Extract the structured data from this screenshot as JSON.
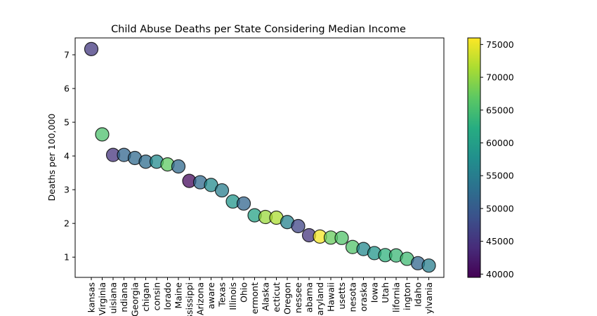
{
  "chart_data": {
    "type": "scatter",
    "title": "Child Abuse Deaths per State Considering Median Income",
    "xlabel": "",
    "ylabel": "Deaths per 100,000",
    "ylim": [
      0.4,
      7.5
    ],
    "yticks": [
      1,
      2,
      3,
      4,
      5,
      6,
      7
    ],
    "grid": false,
    "categories": [
      "Arkansas",
      "West Virginia",
      "Louisiana",
      "Indiana",
      "Georgia",
      "Michigan",
      "Wisconsin",
      "Colorado",
      "Maine",
      "Mississippi",
      "Arizona",
      "Delaware",
      "Texas",
      "Illinois",
      "Ohio",
      "Vermont",
      "Alaska",
      "Connecticut",
      "Oregon",
      "Tennessee",
      "Alabama",
      "Maryland",
      "Hawaii",
      "Massachusetts",
      "Minnesota",
      "Nebraska",
      "Iowa",
      "Utah",
      "California",
      "Washington",
      "Idaho",
      "Pennsylvania"
    ],
    "tick_labels_visible": [
      "kansas",
      "Virginia",
      "uisiana",
      "ndiana",
      "Georgia",
      "chigan",
      "consin",
      "lorado",
      "Maine",
      "ssissippi",
      "Arizona",
      "aware",
      "Texas",
      "Illinois",
      "Ohio",
      "ermont",
      "Alaska",
      "ecticut",
      "Oregon",
      "nessee",
      "abama",
      "aryland",
      "Hawaii",
      "usetts",
      "nesota",
      "oraska",
      "Iowa",
      "Utah",
      "lifornia",
      "ington",
      "Idaho",
      "ylvania"
    ],
    "values": [
      7.17,
      4.64,
      4.03,
      4.03,
      3.94,
      3.83,
      3.83,
      3.75,
      3.69,
      3.26,
      3.22,
      3.14,
      2.98,
      2.65,
      2.59,
      2.24,
      2.19,
      2.17,
      2.04,
      1.92,
      1.65,
      1.61,
      1.58,
      1.57,
      1.3,
      1.24,
      1.12,
      1.06,
      1.05,
      0.95,
      0.82,
      0.75
    ],
    "color_values": [
      45500,
      65500,
      45000,
      51500,
      52000,
      52500,
      57000,
      67000,
      52000,
      40500,
      52000,
      57000,
      55000,
      58500,
      51500,
      60500,
      70500,
      71500,
      55500,
      47000,
      45000,
      75500,
      67500,
      66000,
      66000,
      56500,
      58500,
      63000,
      64000,
      64500,
      51500,
      55000
    ],
    "colorbar": {
      "min": 39500,
      "max": 76000,
      "ticks": [
        40000,
        45000,
        50000,
        55000,
        60000,
        65000,
        70000,
        75000
      ],
      "colormap": "viridis"
    },
    "marker_alpha": 0.75,
    "marker_edge_color": "#000000"
  }
}
